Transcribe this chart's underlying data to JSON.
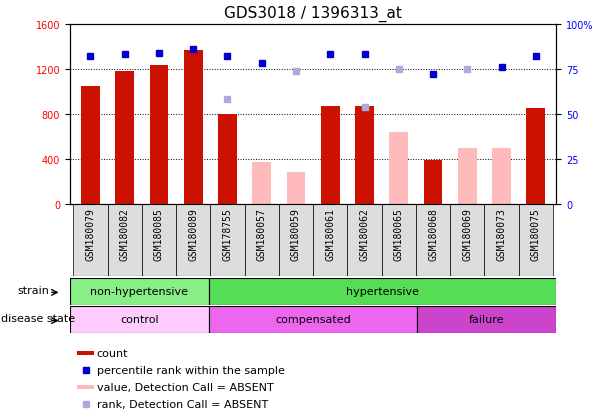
{
  "title": "GDS3018 / 1396313_at",
  "samples": [
    "GSM180079",
    "GSM180082",
    "GSM180085",
    "GSM180089",
    "GSM178755",
    "GSM180057",
    "GSM180059",
    "GSM180061",
    "GSM180062",
    "GSM180065",
    "GSM180068",
    "GSM180069",
    "GSM180073",
    "GSM180075"
  ],
  "counts_present": [
    1050,
    1185,
    1230,
    1370,
    800,
    null,
    null,
    870,
    870,
    null,
    390,
    null,
    null,
    850
  ],
  "counts_absent": [
    null,
    null,
    null,
    null,
    null,
    370,
    280,
    null,
    null,
    640,
    null,
    500,
    500,
    null
  ],
  "ranks_present": [
    82,
    83,
    84,
    86,
    82,
    78,
    null,
    83,
    83,
    null,
    72,
    null,
    76,
    82
  ],
  "ranks_absent": [
    null,
    null,
    null,
    null,
    58,
    null,
    74,
    null,
    54,
    75,
    null,
    75,
    null,
    null
  ],
  "left_ylim": [
    0,
    1600
  ],
  "right_ylim": [
    0,
    100
  ],
  "left_yticks": [
    0,
    400,
    800,
    1200,
    1600
  ],
  "right_yticks": [
    0,
    25,
    50,
    75,
    100
  ],
  "bar_color_present": "#cc1100",
  "bar_color_absent": "#ffbbbb",
  "dot_color_present": "#0000cc",
  "dot_color_absent": "#aaaadd",
  "bar_width": 0.55,
  "strain_groups": [
    {
      "label": "non-hypertensive",
      "start": 0,
      "end": 4,
      "color": "#88ee88"
    },
    {
      "label": "hypertensive",
      "start": 4,
      "end": 14,
      "color": "#55dd55"
    }
  ],
  "disease_groups": [
    {
      "label": "control",
      "start": 0,
      "end": 4,
      "color": "#ffccff"
    },
    {
      "label": "compensated",
      "start": 4,
      "end": 10,
      "color": "#ee66ee"
    },
    {
      "label": "failure",
      "start": 10,
      "end": 14,
      "color": "#cc44cc"
    }
  ],
  "legend_items": [
    {
      "color": "#cc1100",
      "label": "count",
      "shape": "rect"
    },
    {
      "color": "#0000cc",
      "label": "percentile rank within the sample",
      "shape": "square"
    },
    {
      "color": "#ffbbbb",
      "label": "value, Detection Call = ABSENT",
      "shape": "rect"
    },
    {
      "color": "#aaaadd",
      "label": "rank, Detection Call = ABSENT",
      "shape": "square"
    }
  ],
  "title_fontsize": 11,
  "tick_fontsize": 7,
  "annot_fontsize": 8,
  "legend_fontsize": 8
}
